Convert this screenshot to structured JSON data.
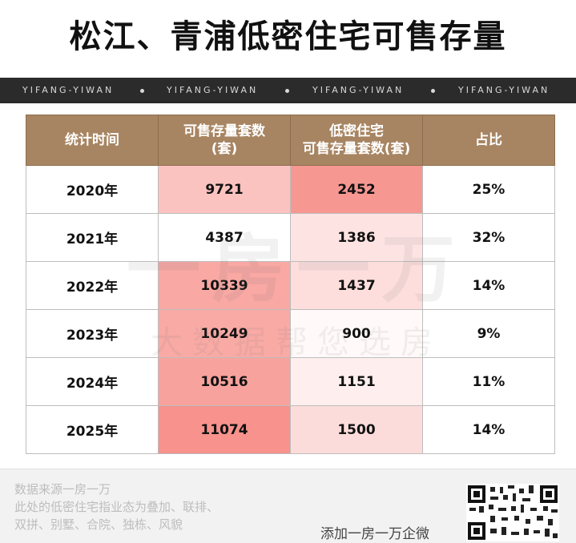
{
  "title": "松江、青浦低密住宅可售存量",
  "band": {
    "items": [
      "YIFANG-YIWAN",
      "YIFANG-YIWAN",
      "YIFANG-YIWAN",
      "YIFANG-YIWAN"
    ]
  },
  "table": {
    "headers": [
      "统计时间",
      "可售存量套数\n(套)",
      "低密住宅\n可售存量套数(套)",
      "占比"
    ],
    "rows": [
      {
        "year": "2020年",
        "total": "9721",
        "lowdensity": "2452",
        "ratio": "25%",
        "total_shade": 0.55,
        "low_shade": 0.95
      },
      {
        "year": "2021年",
        "total": "4387",
        "lowdensity": "1386",
        "ratio": "32%",
        "total_shade": 0.0,
        "low_shade": 0.25
      },
      {
        "year": "2022年",
        "total": "10339",
        "lowdensity": "1437",
        "ratio": "14%",
        "total_shade": 0.8,
        "low_shade": 0.3
      },
      {
        "year": "2023年",
        "total": "10249",
        "lowdensity": "900",
        "ratio": "9%",
        "total_shade": 0.78,
        "low_shade": 0.05
      },
      {
        "year": "2024年",
        "total": "10516",
        "lowdensity": "1151",
        "ratio": "11%",
        "total_shade": 0.85,
        "low_shade": 0.15
      },
      {
        "year": "2025年",
        "total": "11074",
        "lowdensity": "1500",
        "ratio": "14%",
        "total_shade": 1.0,
        "low_shade": 0.32
      }
    ]
  },
  "colors": {
    "header_bg": "#a88562",
    "heat_max": "#f7928c",
    "heat_min": "#ffffff"
  },
  "watermark": {
    "line1": "一房一万",
    "line2": "大数据帮您选房"
  },
  "footer": {
    "source_line1": "数据来源一房一万",
    "source_line2": "此处的低密住宅指业态为叠加、联排、",
    "source_line3": "双拼、别墅、合院、独栋、风貌",
    "add_text": "添加一房一万企微"
  }
}
